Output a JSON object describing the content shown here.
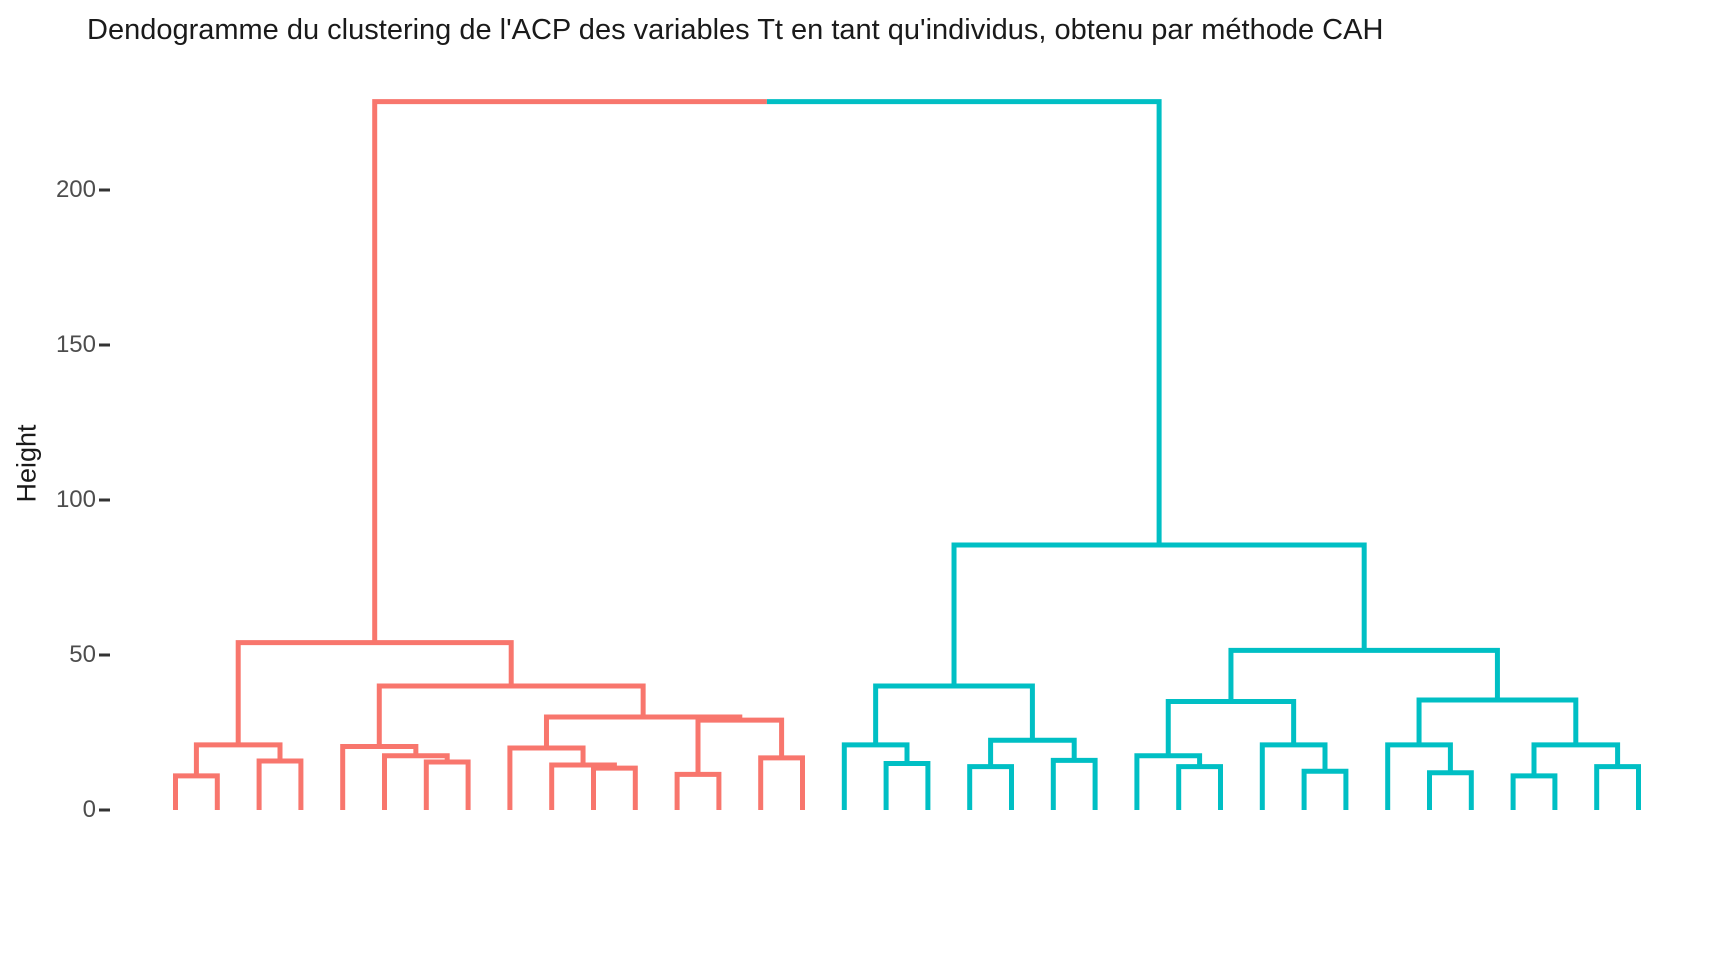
{
  "title": "Dendogramme du clustering de l'ACP des variables Tt en tant qu'individus, obtenu par méthode CAH",
  "y_axis": {
    "label": "Height",
    "ticks": [
      0,
      50,
      100,
      150,
      200
    ]
  },
  "chart_data": {
    "type": "dendrogram",
    "title": "Dendogramme du clustering de l'ACP des variables Tt en tant qu'individus, obtenu par méthode CAH",
    "ylabel": "Height",
    "ylim": [
      0,
      235
    ],
    "grid": "off",
    "legend": "none",
    "n_leaves": 36,
    "leaf_labels_visible": false,
    "cluster_colors": [
      "#F8766D",
      "#00BFC4"
    ],
    "axis_tick_color": "#333333",
    "axis_text_color": "#4d4d4d",
    "root_height": 228.5,
    "tree": {
      "h": 228.5,
      "children": [
        {
          "h": 54,
          "color": "#F8766D",
          "children": [
            {
              "h": 21,
              "children": [
                {
                  "h": 11,
                  "children": [
                    0,
                    1
                  ]
                },
                {
                  "h": 15.8,
                  "children": [
                    2,
                    3
                  ]
                }
              ]
            },
            {
              "h": 40,
              "children": [
                {
                  "h": 20.5,
                  "children": [
                    4,
                    {
                      "h": 17.5,
                      "children": [
                        5,
                        {
                          "h": 15.5,
                          "children": [
                            6,
                            7
                          ]
                        }
                      ]
                    }
                  ]
                },
                {
                  "h": 30,
                  "children": [
                    {
                      "h": 20,
                      "children": [
                        8,
                        {
                          "h": 14.5,
                          "children": [
                            9,
                            {
                              "h": 13.5,
                              "children": [
                                10,
                                11
                              ]
                            }
                          ]
                        }
                      ]
                    },
                    {
                      "h": 29,
                      "children": [
                        {
                          "h": 11.5,
                          "children": [
                            12,
                            13
                          ]
                        },
                        {
                          "h": 16.8,
                          "children": [
                            14,
                            15
                          ]
                        }
                      ]
                    }
                  ]
                }
              ]
            }
          ]
        },
        {
          "h": 85.5,
          "color": "#00BFC4",
          "children": [
            {
              "h": 40,
              "children": [
                {
                  "h": 21,
                  "children": [
                    16,
                    {
                      "h": 15,
                      "children": [
                        17,
                        18
                      ]
                    }
                  ]
                },
                {
                  "h": 22.5,
                  "children": [
                    {
                      "h": 14,
                      "children": [
                        19,
                        20
                      ]
                    },
                    {
                      "h": 16,
                      "children": [
                        21,
                        22
                      ]
                    }
                  ]
                }
              ]
            },
            {
              "h": 51.5,
              "children": [
                {
                  "h": 35,
                  "children": [
                    {
                      "h": 17.5,
                      "children": [
                        23,
                        {
                          "h": 14,
                          "children": [
                            24,
                            25
                          ]
                        }
                      ]
                    },
                    {
                      "h": 21,
                      "children": [
                        26,
                        {
                          "h": 12.5,
                          "children": [
                            27,
                            28
                          ]
                        }
                      ]
                    }
                  ]
                },
                {
                  "h": 35.5,
                  "children": [
                    {
                      "h": 21,
                      "children": [
                        29,
                        {
                          "h": 12,
                          "children": [
                            30,
                            31
                          ]
                        }
                      ]
                    },
                    {
                      "h": 21,
                      "children": [
                        {
                          "h": 11,
                          "children": [
                            32,
                            33
                          ]
                        },
                        {
                          "h": 14,
                          "children": [
                            34,
                            35
                          ]
                        }
                      ]
                    }
                  ]
                }
              ]
            }
          ]
        }
      ]
    }
  }
}
